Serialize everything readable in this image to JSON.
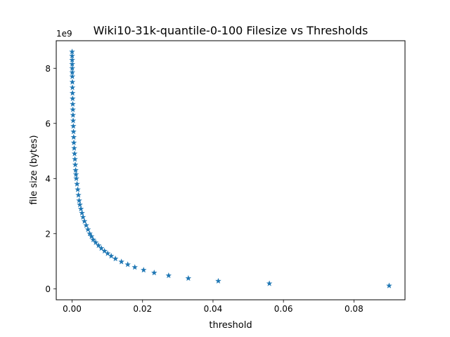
{
  "chart_data": {
    "type": "scatter",
    "title": "Wiki10-31k-quantile-0-100 Filesize vs Thresholds",
    "xlabel": "threshold",
    "ylabel": "file size (bytes)",
    "y_offset_label": "1e9",
    "xlim": [
      -0.0045,
      0.0945
    ],
    "ylim": [
      -0.4,
      9.0
    ],
    "x_ticks": [
      0.0,
      0.02,
      0.04,
      0.06,
      0.08
    ],
    "x_tick_labels": [
      "0.00",
      "0.02",
      "0.04",
      "0.06",
      "0.08"
    ],
    "y_ticks": [
      0,
      2,
      4,
      6,
      8
    ],
    "y_tick_labels": [
      "0",
      "2",
      "4",
      "6",
      "8"
    ],
    "marker": "star",
    "color": "#1f77b4",
    "grid": false,
    "series": [
      {
        "x": [
          0.0,
          1e-05,
          2e-05,
          3e-05,
          4e-05,
          5e-05,
          6e-05,
          8e-05,
          0.0001,
          0.00012,
          0.00015,
          0.00018,
          0.00022,
          0.00026,
          0.0003,
          0.00035,
          0.0004,
          0.00045,
          0.0005,
          0.0006,
          0.0007,
          0.0008,
          0.0009,
          0.001,
          0.0011,
          0.0012,
          0.0014,
          0.0016,
          0.0018,
          0.002,
          0.0022,
          0.0025,
          0.0028,
          0.0031,
          0.0035,
          0.004,
          0.0045,
          0.005,
          0.0055,
          0.006,
          0.0067,
          0.0075,
          0.0083,
          0.0092,
          0.0101,
          0.0111,
          0.0123,
          0.014,
          0.0158,
          0.0178,
          0.0203,
          0.0233,
          0.0274,
          0.033,
          0.0415,
          0.056,
          0.09
        ],
        "y": [
          8.6,
          8.45,
          8.3,
          8.15,
          8.0,
          7.85,
          7.7,
          7.5,
          7.3,
          7.1,
          6.9,
          6.7,
          6.5,
          6.3,
          6.1,
          5.9,
          5.7,
          5.5,
          5.3,
          5.1,
          4.9,
          4.7,
          4.5,
          4.3,
          4.15,
          4.0,
          3.8,
          3.6,
          3.4,
          3.2,
          3.05,
          2.9,
          2.75,
          2.6,
          2.45,
          2.3,
          2.15,
          2.0,
          1.9,
          1.78,
          1.68,
          1.57,
          1.47,
          1.37,
          1.28,
          1.19,
          1.09,
          0.98,
          0.88,
          0.78,
          0.68,
          0.58,
          0.48,
          0.38,
          0.28,
          0.19,
          0.11
        ]
      }
    ]
  }
}
